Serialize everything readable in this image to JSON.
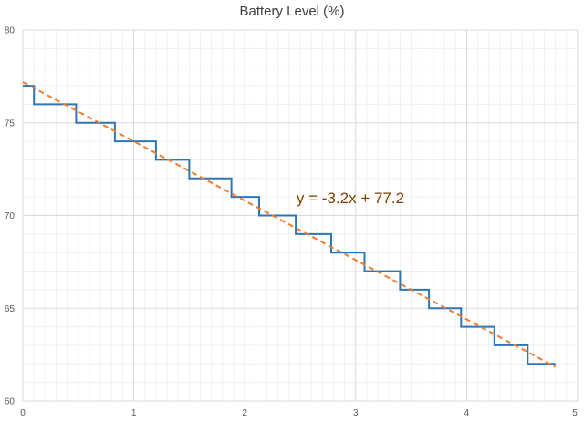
{
  "chart_data": {
    "type": "line",
    "title": "Battery Level (%)",
    "xlabel": "",
    "ylabel": "",
    "xlim": [
      0,
      5
    ],
    "ylim": [
      60,
      80
    ],
    "x_ticks": [
      "0",
      "1",
      "2",
      "3",
      "4",
      "5"
    ],
    "y_ticks": [
      "60",
      "65",
      "70",
      "75",
      "80"
    ],
    "grid": {
      "major": true,
      "minor": true
    },
    "legend": "none",
    "series": [
      {
        "style": "step",
        "color": "#2e75b6",
        "points": [
          [
            0.0,
            77
          ],
          [
            0.1,
            77
          ],
          [
            0.1,
            76
          ],
          [
            0.48,
            76
          ],
          [
            0.48,
            75
          ],
          [
            0.83,
            75
          ],
          [
            0.83,
            74
          ],
          [
            1.2,
            74
          ],
          [
            1.2,
            73
          ],
          [
            1.5,
            73
          ],
          [
            1.5,
            72
          ],
          [
            1.88,
            72
          ],
          [
            1.88,
            71
          ],
          [
            2.13,
            71
          ],
          [
            2.13,
            70
          ],
          [
            2.46,
            70
          ],
          [
            2.46,
            69
          ],
          [
            2.78,
            69
          ],
          [
            2.78,
            68
          ],
          [
            3.08,
            68
          ],
          [
            3.08,
            67
          ],
          [
            3.4,
            67
          ],
          [
            3.4,
            66
          ],
          [
            3.66,
            66
          ],
          [
            3.66,
            65
          ],
          [
            3.95,
            65
          ],
          [
            3.95,
            64
          ],
          [
            4.25,
            64
          ],
          [
            4.25,
            63
          ],
          [
            4.55,
            63
          ],
          [
            4.55,
            62
          ],
          [
            4.8,
            62
          ]
        ]
      }
    ],
    "trendline": {
      "style": "dashed",
      "color": "#ed7d31",
      "x": [
        0,
        4.8
      ],
      "slope": -3.2,
      "intercept": 77.2,
      "label": "y = -3.2x + 77.2",
      "label_color": "#7f3f00"
    }
  }
}
